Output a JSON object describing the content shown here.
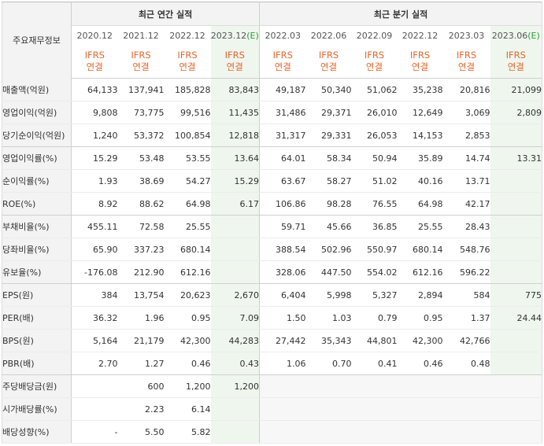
{
  "header": {
    "row_header": "주요재무정보",
    "annual_title": "최근 연간 실적",
    "quarterly_title": "최근 분기 실적",
    "periods": [
      "2020.12",
      "2021.12",
      "2022.12",
      "2023.12",
      "2022.03",
      "2022.06",
      "2022.09",
      "2022.12",
      "2023.03",
      "2023.06"
    ],
    "estimate_marks": [
      "",
      "",
      "",
      "(E)",
      "",
      "",
      "",
      "",
      "",
      "(E)"
    ],
    "ifrs_top": "IFRS",
    "ifrs_bottom": "연결"
  },
  "rows": [
    {
      "label": "매출액(억원)",
      "values": [
        "64,133",
        "137,941",
        "185,828",
        "83,843",
        "49,187",
        "50,340",
        "51,062",
        "35,238",
        "20,816",
        "21,099"
      ]
    },
    {
      "label": "영업이익(억원)",
      "values": [
        "9,808",
        "73,775",
        "99,516",
        "11,435",
        "31,486",
        "29,371",
        "26,010",
        "12,649",
        "3,069",
        "2,809"
      ]
    },
    {
      "label": "당기순이익(억원)",
      "values": [
        "1,240",
        "53,372",
        "100,854",
        "12,818",
        "31,317",
        "29,331",
        "26,053",
        "14,153",
        "2,853",
        ""
      ]
    },
    {
      "label": "영업이익률(%)",
      "values": [
        "15.29",
        "53.48",
        "53.55",
        "13.64",
        "64.01",
        "58.34",
        "50.94",
        "35.89",
        "14.74",
        "13.31"
      ]
    },
    {
      "label": "순이익률(%)",
      "values": [
        "1.93",
        "38.69",
        "54.27",
        "15.29",
        "63.67",
        "58.27",
        "51.02",
        "40.16",
        "13.71",
        ""
      ]
    },
    {
      "label": "ROE(%)",
      "values": [
        "8.92",
        "88.62",
        "64.98",
        "6.17",
        "106.86",
        "98.28",
        "76.55",
        "64.98",
        "42.17",
        ""
      ]
    },
    {
      "label": "부채비율(%)",
      "values": [
        "455.11",
        "72.58",
        "25.55",
        "",
        "59.71",
        "45.66",
        "36.85",
        "25.55",
        "28.43",
        ""
      ]
    },
    {
      "label": "당좌비율(%)",
      "values": [
        "65.90",
        "337.23",
        "680.14",
        "",
        "388.54",
        "502.96",
        "550.97",
        "680.14",
        "548.76",
        ""
      ]
    },
    {
      "label": "유보율(%)",
      "values": [
        "-176.08",
        "212.90",
        "612.16",
        "",
        "328.06",
        "447.50",
        "554.02",
        "612.16",
        "596.22",
        ""
      ]
    },
    {
      "label": "EPS(원)",
      "values": [
        "384",
        "13,754",
        "20,623",
        "2,670",
        "6,404",
        "5,998",
        "5,327",
        "2,894",
        "584",
        "775"
      ]
    },
    {
      "label": "PER(배)",
      "values": [
        "36.32",
        "1.96",
        "0.95",
        "7.09",
        "1.50",
        "1.03",
        "0.79",
        "0.95",
        "1.37",
        "24.44"
      ]
    },
    {
      "label": "BPS(원)",
      "values": [
        "5,164",
        "21,179",
        "42,300",
        "44,283",
        "27,442",
        "35,343",
        "44,801",
        "42,300",
        "42,766",
        ""
      ]
    },
    {
      "label": "PBR(배)",
      "values": [
        "2.70",
        "1.27",
        "0.46",
        "0.43",
        "1.06",
        "0.70",
        "0.41",
        "0.46",
        "0.48",
        ""
      ]
    },
    {
      "label": "주당배당금(원)",
      "values": [
        "",
        "600",
        "1,200",
        "1,200",
        "",
        "",
        "",
        "",
        "",
        ""
      ]
    },
    {
      "label": "시가배당률(%)",
      "values": [
        "",
        "2.23",
        "6.14",
        "",
        "",
        "",
        "",
        "",
        "",
        ""
      ]
    },
    {
      "label": "배당성향(%)",
      "values": [
        "-",
        "5.50",
        "5.82",
        "",
        "",
        "",
        "",
        "",
        "",
        ""
      ]
    }
  ],
  "colors": {
    "ifrs": "#e8662c",
    "estimate_bg": "#eef6ee",
    "estimate_mark": "#2e9b3a",
    "negative": "#e23c2c"
  }
}
